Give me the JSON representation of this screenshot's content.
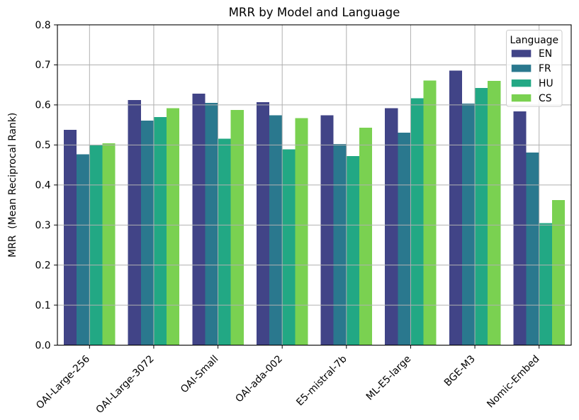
{
  "figure": {
    "background": "#ffffff",
    "text_color": "#000000",
    "grid_color": "#b0b0b0",
    "spine_color": "#000000"
  },
  "chart_data": {
    "type": "bar",
    "title": "MRR by Model and Language",
    "xlabel": "",
    "ylabel": "MRR  (Mean Reciprocal Rank)",
    "categories": [
      "OAI-Large-256",
      "OAI-Large-3072",
      "OAI-Small",
      "OAI-ada-002",
      "E5-mistral-7b",
      "ML-E5-large",
      "BGE-M3",
      "Nomic-Embed"
    ],
    "series": [
      {
        "name": "EN",
        "color": "#414487",
        "values": [
          0.538,
          0.612,
          0.628,
          0.607,
          0.574,
          0.592,
          0.686,
          0.584
        ]
      },
      {
        "name": "FR",
        "color": "#2a788e",
        "values": [
          0.477,
          0.561,
          0.605,
          0.574,
          0.502,
          0.531,
          0.603,
          0.481
        ]
      },
      {
        "name": "HU",
        "color": "#22a884",
        "values": [
          0.5,
          0.57,
          0.516,
          0.489,
          0.472,
          0.617,
          0.642,
          0.305
        ]
      },
      {
        "name": "CS",
        "color": "#7ad151",
        "values": [
          0.504,
          0.592,
          0.587,
          0.567,
          0.543,
          0.661,
          0.66,
          0.362
        ]
      }
    ],
    "ylim": [
      0.0,
      0.8
    ],
    "yticks": [
      0.0,
      0.1,
      0.2,
      0.3,
      0.4,
      0.5,
      0.6,
      0.7,
      0.8
    ],
    "ytick_labels": [
      "0.0",
      "0.1",
      "0.2",
      "0.3",
      "0.4",
      "0.5",
      "0.6",
      "0.7",
      "0.8"
    ],
    "xtick_rotation": 45,
    "grid": true,
    "bar_group_width": 0.8,
    "legend": {
      "title": "Language",
      "position": "upper right",
      "entries": [
        "EN",
        "FR",
        "HU",
        "CS"
      ]
    }
  }
}
